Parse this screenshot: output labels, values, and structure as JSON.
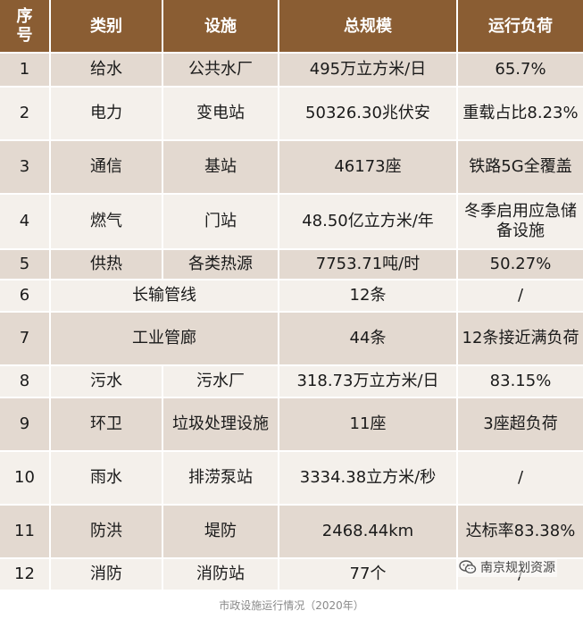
{
  "header": {
    "seq_1": "序",
    "seq_2": "号",
    "category": "类别",
    "facility": "设施",
    "scale": "总规模",
    "load": "运行负荷"
  },
  "rows": [
    {
      "no": "1",
      "category": "给水",
      "facility": "公共水厂",
      "scale": "495万立方米/日",
      "load": "65.7%"
    },
    {
      "no": "2",
      "category": "电力",
      "facility": "变电站",
      "scale": "50326.30兆伏安",
      "load": "重载占比8.23%"
    },
    {
      "no": "3",
      "category": "通信",
      "facility": "基站",
      "scale": "46173座",
      "load": "铁路5G全覆盖"
    },
    {
      "no": "4",
      "category": "燃气",
      "facility": "门站",
      "scale": "48.50亿立方米/年",
      "load": "冬季启用应急储备设施"
    },
    {
      "no": "5",
      "category": "供热",
      "facility": "各类热源",
      "scale": "7753.71吨/时",
      "load": "50.27%"
    },
    {
      "no": "6",
      "category": "长输管线",
      "facility": "",
      "scale": "12条",
      "load": "/"
    },
    {
      "no": "7",
      "category": "工业管廊",
      "facility": "",
      "scale": "44条",
      "load": "12条接近满负荷"
    },
    {
      "no": "8",
      "category": "污水",
      "facility": "污水厂",
      "scale": "318.73万立方米/日",
      "load": "83.15%"
    },
    {
      "no": "9",
      "category": "环卫",
      "facility": "垃圾处理设施",
      "scale": "11座",
      "load": "3座超负荷"
    },
    {
      "no": "10",
      "category": "雨水",
      "facility": "排涝泵站",
      "scale": "3334.38立方米/秒",
      "load": "/"
    },
    {
      "no": "11",
      "category": "防洪",
      "facility": "堤防",
      "scale": "2468.44km",
      "load": "达标率83.38%"
    },
    {
      "no": "12",
      "category": "消防",
      "facility": "消防站",
      "scale": "77个",
      "load": "/"
    }
  ],
  "footer": {
    "caption": "市政设施运行情况（2020年）"
  },
  "watermark": {
    "text": "南京规划资源",
    "icon": "wechat-icon"
  },
  "colors": {
    "header_bg": "#8a5d33",
    "row_dark": "#e3d9d0",
    "row_light": "#f4f0eb"
  }
}
